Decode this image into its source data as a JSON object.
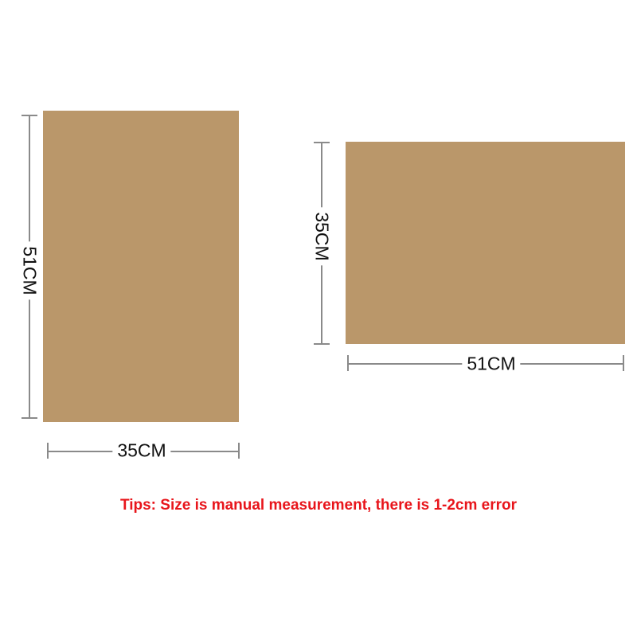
{
  "sheet_color": "#BA976A",
  "portrait": {
    "height_label": "51CM",
    "width_label": "35CM"
  },
  "landscape": {
    "height_label": "35CM",
    "width_label": "51CM"
  },
  "tips": {
    "text": "Tips: Size is manual measurement, there is 1-2cm error",
    "color": "#e8151b"
  }
}
